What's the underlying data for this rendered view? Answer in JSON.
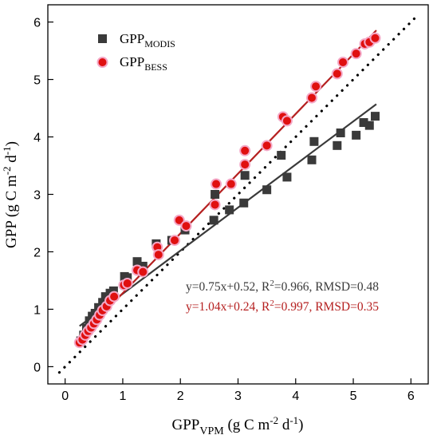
{
  "chart_data": {
    "type": "scatter",
    "xlabel": "GPP_VPM (g C m-2 d-1)",
    "ylabel": "GPP (g C m-2 d-1)",
    "xlim": [
      -0.3,
      6.3
    ],
    "ylim": [
      -0.3,
      6.3
    ],
    "xticks": [
      "0",
      "1",
      "2",
      "3",
      "4",
      "5",
      "6"
    ],
    "yticks": [
      "0",
      "1",
      "2",
      "3",
      "4",
      "5",
      "6"
    ],
    "grid": false,
    "legend_position": "top-left",
    "series": [
      {
        "name": "GPPMODIS",
        "name_main": "GPP",
        "name_sub": "MODIS",
        "color": "#3a3a3a",
        "marker": "square",
        "points": [
          [
            0.27,
            0.45
          ],
          [
            0.32,
            0.55
          ],
          [
            0.37,
            0.67
          ],
          [
            0.42,
            0.8
          ],
          [
            0.47,
            0.88
          ],
          [
            0.52,
            0.93
          ],
          [
            0.58,
            1.03
          ],
          [
            0.65,
            1.12
          ],
          [
            0.7,
            1.22
          ],
          [
            0.78,
            1.28
          ],
          [
            0.84,
            1.32
          ],
          [
            1.03,
            1.57
          ],
          [
            1.08,
            1.55
          ],
          [
            1.25,
            1.83
          ],
          [
            1.35,
            1.75
          ],
          [
            1.58,
            2.14
          ],
          [
            1.85,
            2.2
          ],
          [
            2.08,
            2.38
          ],
          [
            2.58,
            2.55
          ],
          [
            2.6,
            3.0
          ],
          [
            2.85,
            2.73
          ],
          [
            3.1,
            2.85
          ],
          [
            3.12,
            3.33
          ],
          [
            3.5,
            3.08
          ],
          [
            3.75,
            3.68
          ],
          [
            3.85,
            3.3
          ],
          [
            4.28,
            3.6
          ],
          [
            4.32,
            3.92
          ],
          [
            4.72,
            3.85
          ],
          [
            4.78,
            4.07
          ],
          [
            5.05,
            4.03
          ],
          [
            5.18,
            4.25
          ],
          [
            5.28,
            4.2
          ],
          [
            5.38,
            4.36
          ]
        ]
      },
      {
        "name": "GPPBESS",
        "name_main": "GPP",
        "name_sub": "BESS",
        "color": "#e01010",
        "marker": "circle",
        "points": [
          [
            0.25,
            0.42
          ],
          [
            0.3,
            0.47
          ],
          [
            0.35,
            0.55
          ],
          [
            0.4,
            0.62
          ],
          [
            0.45,
            0.68
          ],
          [
            0.5,
            0.75
          ],
          [
            0.55,
            0.82
          ],
          [
            0.6,
            0.9
          ],
          [
            0.65,
            0.98
          ],
          [
            0.72,
            1.05
          ],
          [
            0.78,
            1.15
          ],
          [
            0.85,
            1.22
          ],
          [
            1.02,
            1.42
          ],
          [
            1.08,
            1.45
          ],
          [
            1.25,
            1.68
          ],
          [
            1.35,
            1.65
          ],
          [
            1.6,
            2.08
          ],
          [
            1.62,
            1.95
          ],
          [
            1.9,
            2.2
          ],
          [
            1.98,
            2.55
          ],
          [
            2.1,
            2.45
          ],
          [
            2.6,
            2.82
          ],
          [
            2.62,
            3.18
          ],
          [
            2.88,
            3.18
          ],
          [
            3.12,
            3.52
          ],
          [
            3.12,
            3.76
          ],
          [
            3.5,
            3.85
          ],
          [
            3.78,
            4.35
          ],
          [
            3.85,
            4.28
          ],
          [
            4.28,
            4.68
          ],
          [
            4.35,
            4.88
          ],
          [
            4.72,
            5.1
          ],
          [
            4.82,
            5.3
          ],
          [
            5.05,
            5.45
          ],
          [
            5.2,
            5.62
          ],
          [
            5.28,
            5.65
          ],
          [
            5.38,
            5.72
          ]
        ]
      }
    ],
    "reference_line": {
      "type": "1:1",
      "style": "dotted",
      "from": -0.1,
      "to": 6.1
    },
    "fits": [
      {
        "series": "GPPMODIS",
        "slope": 0.75,
        "intercept": 0.52,
        "x_range": [
          0.25,
          5.4
        ],
        "color": "#3a3a3a",
        "equation": "y=0.75x+0.52, R2=0.966, RMSD=0.48",
        "eq_main": "y=0.75x+0.52, R",
        "eq_sup": "2",
        "eq_rest": "=0.966, RMSD=0.48"
      },
      {
        "series": "GPPBESS",
        "slope": 1.04,
        "intercept": 0.24,
        "x_range": [
          0.25,
          5.4
        ],
        "color": "#b52020",
        "equation": "y=1.04x+0.24, R2=0.997, RMSD=0.35",
        "eq_main": "y=1.04x+0.24, R",
        "eq_sup": "2",
        "eq_rest": "=0.997, RMSD=0.35"
      }
    ]
  }
}
